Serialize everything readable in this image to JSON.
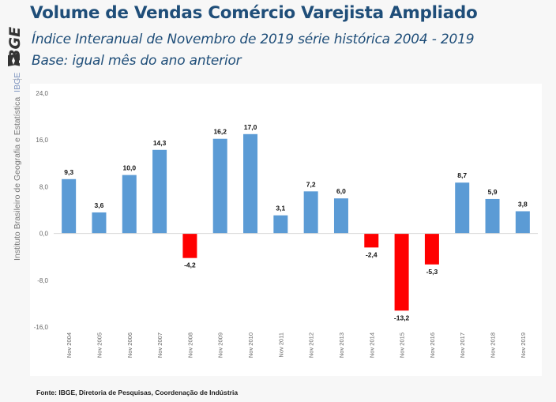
{
  "header": {
    "logo_text": "IBGE",
    "title": "Volume de Vendas Comércio Varejista Ampliado",
    "subtitle": "Índice Interanual de Novembro de 2019 série histórica 2004 - 2019",
    "base": "Base: igual mês do ano anterior"
  },
  "side_label": {
    "institute": "Instituto Brasileiro de Geografia e Estatística",
    "abbr": "IBGE"
  },
  "footer": {
    "source": "Fonte: IBGE, Diretoria de Pesquisas, Coordenação de Indústria"
  },
  "colors": {
    "positive": "#5b9bd5",
    "negative": "#ff0000",
    "title": "#1f4e79"
  },
  "chart_data": {
    "type": "bar",
    "title": "Volume de Vendas Comércio Varejista Ampliado",
    "subtitle": "Índice Interanual de Novembro de 2019 série histórica 2004 - 2019",
    "xlabel": "",
    "ylabel": "",
    "ylim": [
      -16,
      24
    ],
    "yticks": [
      24,
      16,
      8,
      0,
      -8,
      -16
    ],
    "ytick_labels": [
      "24,0",
      "16,0",
      "8,0",
      "0,0",
      "-8,0",
      "-16,0"
    ],
    "grid": false,
    "legend": "none",
    "categories": [
      "Nov 2004",
      "Nov 2005",
      "Nov 2006",
      "Nov 2007",
      "Nov 2008",
      "Nov 2009",
      "Nov 2010",
      "Nov 2011",
      "Nov 2012",
      "Nov 2013",
      "Nov 2014",
      "Nov 2015",
      "Nov 2016",
      "Nov 2017",
      "Nov 2018",
      "Nov 2019"
    ],
    "values": [
      9.3,
      3.6,
      10.0,
      14.3,
      -4.2,
      16.2,
      17.0,
      3.1,
      7.2,
      6.0,
      -2.4,
      -13.2,
      -5.3,
      8.7,
      5.9,
      3.8
    ],
    "value_labels": [
      "9,3",
      "3,6",
      "10,0",
      "14,3",
      "-4,2",
      "16,2",
      "17,0",
      "3,1",
      "7,2",
      "6,0",
      "-2,4",
      "-13,2",
      "-5,3",
      "8,7",
      "5,9",
      "3,8"
    ]
  }
}
